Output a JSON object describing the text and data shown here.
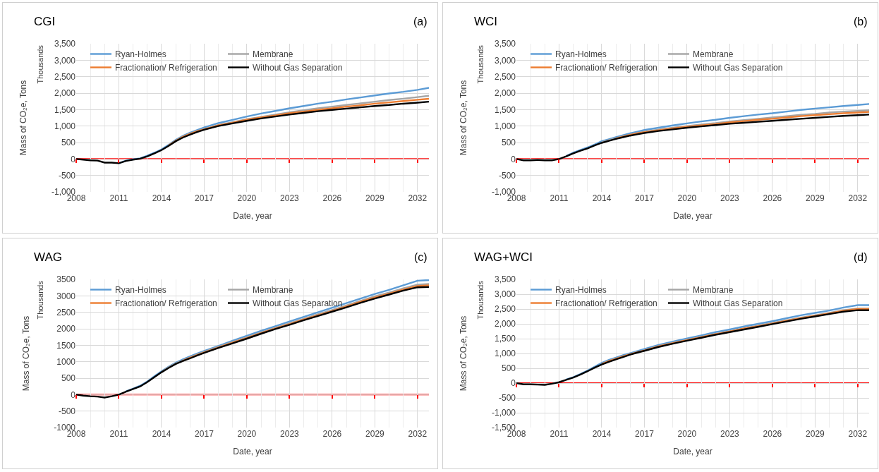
{
  "chart_data": [
    {
      "type": "line",
      "title": "CGI",
      "xlabel": "Date, year",
      "ylabel": "Mass of CO₂e, Tons",
      "annotations": [
        "(a)",
        "Thousands"
      ],
      "x": [
        2008,
        2008.5,
        2009,
        2009.5,
        2010,
        2010.5,
        2011,
        2011.5,
        2012,
        2012.5,
        2013,
        2013.5,
        2014,
        2014.5,
        2015,
        2015.5,
        2016,
        2016.5,
        2017,
        2018,
        2019,
        2020,
        2021,
        2022,
        2023,
        2024,
        2025,
        2026,
        2027,
        2028,
        2029,
        2030,
        2031,
        2032,
        2032.8
      ],
      "series": [
        {
          "name": "Ryan-Holmes",
          "color": "#5b9bd5",
          "values": [
            null,
            null,
            null,
            null,
            null,
            null,
            -130,
            -50,
            -10,
            20,
            100,
            190,
            290,
            430,
            580,
            700,
            800,
            880,
            960,
            1090,
            1190,
            1290,
            1380,
            1460,
            1540,
            1610,
            1680,
            1740,
            1810,
            1870,
            1930,
            1990,
            2040,
            2100,
            2160
          ]
        },
        {
          "name": "Membrane",
          "color": "#a5a5a5",
          "values": [
            null,
            null,
            null,
            null,
            null,
            null,
            null,
            null,
            null,
            null,
            null,
            null,
            null,
            420,
            560,
            680,
            770,
            850,
            910,
            1030,
            1120,
            1210,
            1280,
            1350,
            1420,
            1480,
            1540,
            1590,
            1640,
            1690,
            1740,
            1790,
            1830,
            1880,
            1920
          ]
        },
        {
          "name": "Fractionation/ Refrigeration",
          "color": "#ed7d31",
          "values": [
            null,
            null,
            null,
            null,
            null,
            null,
            null,
            null,
            null,
            null,
            null,
            null,
            null,
            410,
            550,
            670,
            760,
            840,
            900,
            1020,
            1100,
            1190,
            1260,
            1320,
            1390,
            1440,
            1490,
            1540,
            1590,
            1630,
            1680,
            1720,
            1760,
            1800,
            1830
          ]
        },
        {
          "name": "Without Gas Separation",
          "color": "#000000",
          "values": [
            0,
            -20,
            -40,
            -50,
            -110,
            -110,
            -130,
            -60,
            -20,
            10,
            80,
            170,
            270,
            400,
            540,
            650,
            740,
            820,
            890,
            1000,
            1080,
            1160,
            1230,
            1290,
            1350,
            1400,
            1450,
            1490,
            1530,
            1570,
            1610,
            1640,
            1680,
            1710,
            1740
          ]
        }
      ],
      "xlim": [
        2008,
        2032.8
      ],
      "xticks": [
        2008,
        2011,
        2014,
        2017,
        2020,
        2023,
        2026,
        2029,
        2032
      ],
      "ylim": [
        -1000,
        3500
      ],
      "yticks": [
        {
          "value": -1000,
          "label": "-1,000"
        },
        -500,
        0,
        500,
        {
          "value": 1000,
          "label": "1,000"
        },
        {
          "value": 1500,
          "label": "1,500"
        },
        {
          "value": 2000,
          "label": "2,000"
        },
        {
          "value": 2500,
          "label": "2,500"
        },
        {
          "value": 3000,
          "label": "3,000"
        },
        {
          "value": 3500,
          "label": "3,500"
        }
      ],
      "ref_lines": [
        {
          "axis": "y",
          "value": 0,
          "color": "#ff0000"
        }
      ],
      "grid": true,
      "legend": "top"
    },
    {
      "type": "line",
      "title": "WCI",
      "xlabel": "Date, year",
      "ylabel": "Mass of CO₂e, Tons",
      "annotations": [
        "(b)",
        "Thousands"
      ],
      "x": [
        2008,
        2008.5,
        2009,
        2009.5,
        2010,
        2010.5,
        2011,
        2011.5,
        2012,
        2012.5,
        2013,
        2013.5,
        2014,
        2014.5,
        2015,
        2015.5,
        2016,
        2016.5,
        2017,
        2018,
        2019,
        2020,
        2021,
        2022,
        2023,
        2024,
        2025,
        2026,
        2027,
        2028,
        2029,
        2030,
        2031,
        2032,
        2032.8
      ],
      "series": [
        {
          "name": "Ryan-Holmes",
          "color": "#5b9bd5",
          "values": [
            null,
            null,
            null,
            null,
            null,
            null,
            null,
            90,
            190,
            270,
            350,
            440,
            540,
            600,
            660,
            720,
            780,
            830,
            880,
            950,
            1020,
            1080,
            1140,
            1190,
            1250,
            1300,
            1350,
            1390,
            1440,
            1490,
            1530,
            1570,
            1610,
            1640,
            1670
          ]
        },
        {
          "name": "Membrane",
          "color": "#a5a5a5",
          "values": [
            null,
            null,
            null,
            null,
            null,
            null,
            null,
            null,
            null,
            null,
            null,
            null,
            510,
            570,
            630,
            690,
            740,
            790,
            830,
            890,
            950,
            1000,
            1050,
            1090,
            1140,
            1180,
            1220,
            1260,
            1300,
            1340,
            1370,
            1410,
            1440,
            1460,
            1480
          ]
        },
        {
          "name": "Fractionation/ Refrigeration",
          "color": "#ed7d31",
          "values": [
            null,
            null,
            null,
            null,
            null,
            null,
            null,
            null,
            null,
            null,
            null,
            null,
            null,
            null,
            620,
            680,
            730,
            780,
            810,
            870,
            930,
            980,
            1020,
            1060,
            1110,
            1150,
            1190,
            1220,
            1260,
            1300,
            1330,
            1360,
            1390,
            1410,
            1430
          ]
        },
        {
          "name": "Without Gas Separation",
          "color": "#000000",
          "values": [
            0,
            -40,
            -40,
            -30,
            -40,
            -40,
            0,
            80,
            170,
            250,
            320,
            410,
            490,
            550,
            610,
            660,
            710,
            750,
            790,
            850,
            900,
            950,
            990,
            1030,
            1070,
            1100,
            1130,
            1160,
            1190,
            1220,
            1250,
            1280,
            1310,
            1330,
            1350
          ]
        }
      ],
      "xlim": [
        2008,
        2032.8
      ],
      "xticks": [
        2008,
        2011,
        2014,
        2017,
        2020,
        2023,
        2026,
        2029,
        2032
      ],
      "ylim": [
        -1000,
        3500
      ],
      "yticks": [
        {
          "value": -1000,
          "label": "-1,000"
        },
        -500,
        0,
        500,
        {
          "value": 1000,
          "label": "1,000"
        },
        {
          "value": 1500,
          "label": "1,500"
        },
        {
          "value": 2000,
          "label": "2,000"
        },
        {
          "value": 2500,
          "label": "2,500"
        },
        {
          "value": 3000,
          "label": "3,000"
        },
        {
          "value": 3500,
          "label": "3,500"
        }
      ],
      "ref_lines": [
        {
          "axis": "y",
          "value": 0,
          "color": "#ff0000"
        }
      ],
      "grid": true,
      "legend": "top"
    },
    {
      "type": "line",
      "title": "WAG",
      "xlabel": "Date, year",
      "ylabel": "Mass of CO₂e, Tons",
      "annotations": [
        "(c)",
        "Thousands"
      ],
      "x": [
        2008,
        2008.5,
        2009,
        2009.5,
        2010,
        2010.5,
        2011,
        2011.5,
        2012,
        2012.5,
        2013,
        2013.5,
        2014,
        2014.5,
        2015,
        2015.5,
        2016,
        2016.5,
        2017,
        2018,
        2019,
        2020,
        2021,
        2022,
        2023,
        2024,
        2025,
        2026,
        2027,
        2028,
        2029,
        2030,
        2031,
        2032,
        2032.8
      ],
      "series": [
        {
          "name": "Ryan-Holmes",
          "color": "#5b9bd5",
          "values": [
            null,
            null,
            null,
            null,
            null,
            null,
            null,
            100,
            180,
            270,
            400,
            560,
            710,
            850,
            970,
            1070,
            1160,
            1250,
            1330,
            1480,
            1640,
            1790,
            1940,
            2080,
            2220,
            2360,
            2500,
            2640,
            2780,
            2920,
            3060,
            3180,
            3320,
            3460,
            3480
          ]
        },
        {
          "name": "Membrane",
          "color": "#a5a5a5",
          "values": [
            null,
            null,
            null,
            null,
            null,
            null,
            null,
            null,
            null,
            null,
            null,
            null,
            690,
            830,
            950,
            1040,
            1130,
            1220,
            1300,
            1450,
            1600,
            1740,
            1890,
            2030,
            2170,
            2300,
            2440,
            2570,
            2710,
            2850,
            2990,
            3100,
            3230,
            3340,
            3360
          ]
        },
        {
          "name": "Fractionation/ Refrigeration",
          "color": "#ed7d31",
          "values": [
            null,
            null,
            null,
            null,
            null,
            null,
            null,
            null,
            null,
            null,
            null,
            null,
            null,
            null,
            null,
            1030,
            1120,
            1200,
            1280,
            1430,
            1580,
            1720,
            1870,
            2010,
            2140,
            2280,
            2410,
            2540,
            2680,
            2820,
            2950,
            3070,
            3190,
            3300,
            3320
          ]
        },
        {
          "name": "Without Gas Separation",
          "color": "#000000",
          "values": [
            0,
            -30,
            -50,
            -60,
            -90,
            -50,
            0,
            90,
            170,
            250,
            380,
            530,
            680,
            810,
            930,
            1020,
            1100,
            1190,
            1270,
            1420,
            1560,
            1700,
            1850,
            1990,
            2120,
            2260,
            2390,
            2520,
            2650,
            2790,
            2920,
            3040,
            3160,
            3260,
            3270
          ]
        }
      ],
      "xlim": [
        2008,
        2032.8
      ],
      "xticks": [
        2008,
        2011,
        2014,
        2017,
        2020,
        2023,
        2026,
        2029,
        2032
      ],
      "ylim": [
        -1000,
        3500
      ],
      "yticks": [
        -1000,
        -500,
        0,
        500,
        1000,
        1500,
        2000,
        2500,
        3000,
        3500
      ],
      "ref_lines": [
        {
          "axis": "y",
          "value": 0,
          "color": "#ff0000"
        }
      ],
      "grid": true,
      "legend": "top"
    },
    {
      "type": "line",
      "title": "WAG+WCI",
      "xlabel": "Date, year",
      "ylabel": "Mass of CO₂e, Tons",
      "annotations": [
        "(d)",
        "Thousands"
      ],
      "x": [
        2008,
        2008.5,
        2009,
        2009.5,
        2010,
        2010.5,
        2011,
        2011.5,
        2012,
        2012.5,
        2013,
        2013.5,
        2014,
        2014.5,
        2015,
        2015.5,
        2016,
        2016.5,
        2017,
        2018,
        2019,
        2020,
        2021,
        2022,
        2023,
        2024,
        2025,
        2026,
        2027,
        2028,
        2029,
        2030,
        2031,
        2032,
        2032.8
      ],
      "series": [
        {
          "name": "Ryan-Holmes",
          "color": "#5b9bd5",
          "values": [
            null,
            null,
            null,
            null,
            null,
            null,
            null,
            120,
            200,
            310,
            420,
            550,
            680,
            780,
            860,
            940,
            1010,
            1080,
            1150,
            1290,
            1400,
            1510,
            1610,
            1720,
            1810,
            1910,
            2000,
            2090,
            2190,
            2290,
            2370,
            2450,
            2550,
            2630,
            2630
          ]
        },
        {
          "name": "Membrane",
          "color": "#a5a5a5",
          "values": [
            null,
            null,
            null,
            null,
            null,
            null,
            null,
            null,
            null,
            null,
            null,
            null,
            650,
            750,
            830,
            910,
            980,
            1050,
            1110,
            1250,
            1360,
            1460,
            1560,
            1660,
            1750,
            1850,
            1940,
            2030,
            2120,
            2210,
            2290,
            2370,
            2460,
            2520,
            2520
          ]
        },
        {
          "name": "Fractionation/ Refrigeration",
          "color": "#ed7d31",
          "values": [
            null,
            null,
            null,
            null,
            null,
            null,
            null,
            null,
            null,
            null,
            null,
            null,
            640,
            740,
            820,
            900,
            970,
            1040,
            1100,
            1240,
            1350,
            1450,
            1550,
            1650,
            1740,
            1840,
            1920,
            2010,
            2100,
            2190,
            2270,
            2350,
            2440,
            2500,
            2500
          ]
        },
        {
          "name": "Without Gas Separation",
          "color": "#000000",
          "values": [
            0,
            -40,
            -40,
            -50,
            -60,
            -20,
            30,
            110,
            190,
            290,
            400,
            520,
            630,
            720,
            800,
            880,
            960,
            1030,
            1090,
            1220,
            1330,
            1430,
            1530,
            1630,
            1720,
            1810,
            1900,
            1990,
            2080,
            2170,
            2250,
            2330,
            2410,
            2460,
            2460
          ]
        }
      ],
      "xlim": [
        2008,
        2032.8
      ],
      "xticks": [
        2008,
        2011,
        2014,
        2017,
        2020,
        2023,
        2026,
        2029,
        2032
      ],
      "ylim": [
        -1500,
        3500
      ],
      "yticks": [
        {
          "value": -1500,
          "label": "-1,500"
        },
        {
          "value": -1000,
          "label": "-1,000"
        },
        -500,
        0,
        500,
        {
          "value": 1000,
          "label": "1,000"
        },
        {
          "value": 1500,
          "label": "1,500"
        },
        {
          "value": 2000,
          "label": "2,000"
        },
        {
          "value": 2500,
          "label": "2,500"
        },
        {
          "value": 3000,
          "label": "3,000"
        },
        {
          "value": 3500,
          "label": "3,500"
        }
      ],
      "ref_lines": [
        {
          "axis": "y",
          "value": 0,
          "color": "#ff0000"
        }
      ],
      "grid": true,
      "legend": "top"
    }
  ]
}
